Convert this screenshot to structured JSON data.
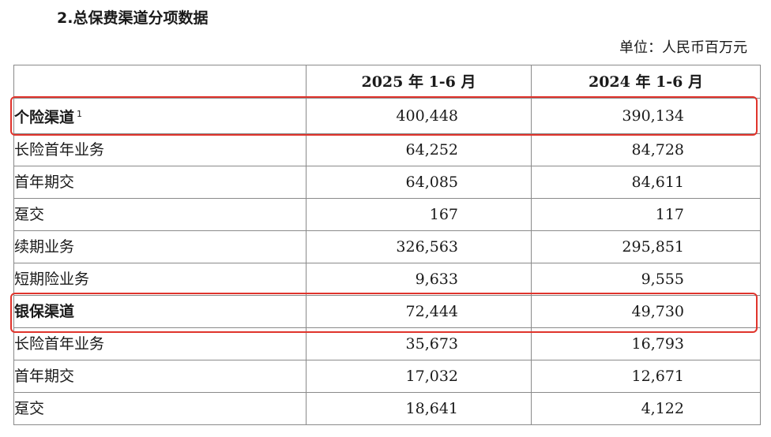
{
  "section_title": "2.总保费渠道分项数据",
  "unit": "单位：人民币百万元",
  "table": {
    "headers": [
      "",
      "2025 年 1-6 月",
      "2024 年 1-6 月"
    ],
    "rows": [
      {
        "label": "个险渠道",
        "note": "1",
        "v2025": "400,448",
        "v2024": "390,134"
      },
      {
        "label": "长险首年业务",
        "v2025": "64,252",
        "v2024": "84,728"
      },
      {
        "label": "首年期交",
        "v2025": "64,085",
        "v2024": "84,611"
      },
      {
        "label": "趸交",
        "v2025": "167",
        "v2024": "117"
      },
      {
        "label": "续期业务",
        "v2025": "326,563",
        "v2024": "295,851"
      },
      {
        "label": "短期险业务",
        "v2025": "9,633",
        "v2024": "9,555"
      },
      {
        "label": "银保渠道",
        "v2025": "72,444",
        "v2024": "49,730"
      },
      {
        "label": "长险首年业务",
        "v2025": "35,673",
        "v2024": "16,793"
      },
      {
        "label": "首年期交",
        "v2025": "17,032",
        "v2024": "12,671"
      },
      {
        "label": "趸交",
        "v2025": "18,641",
        "v2024": "4,122"
      }
    ]
  },
  "highlight_color": "#e0342c"
}
